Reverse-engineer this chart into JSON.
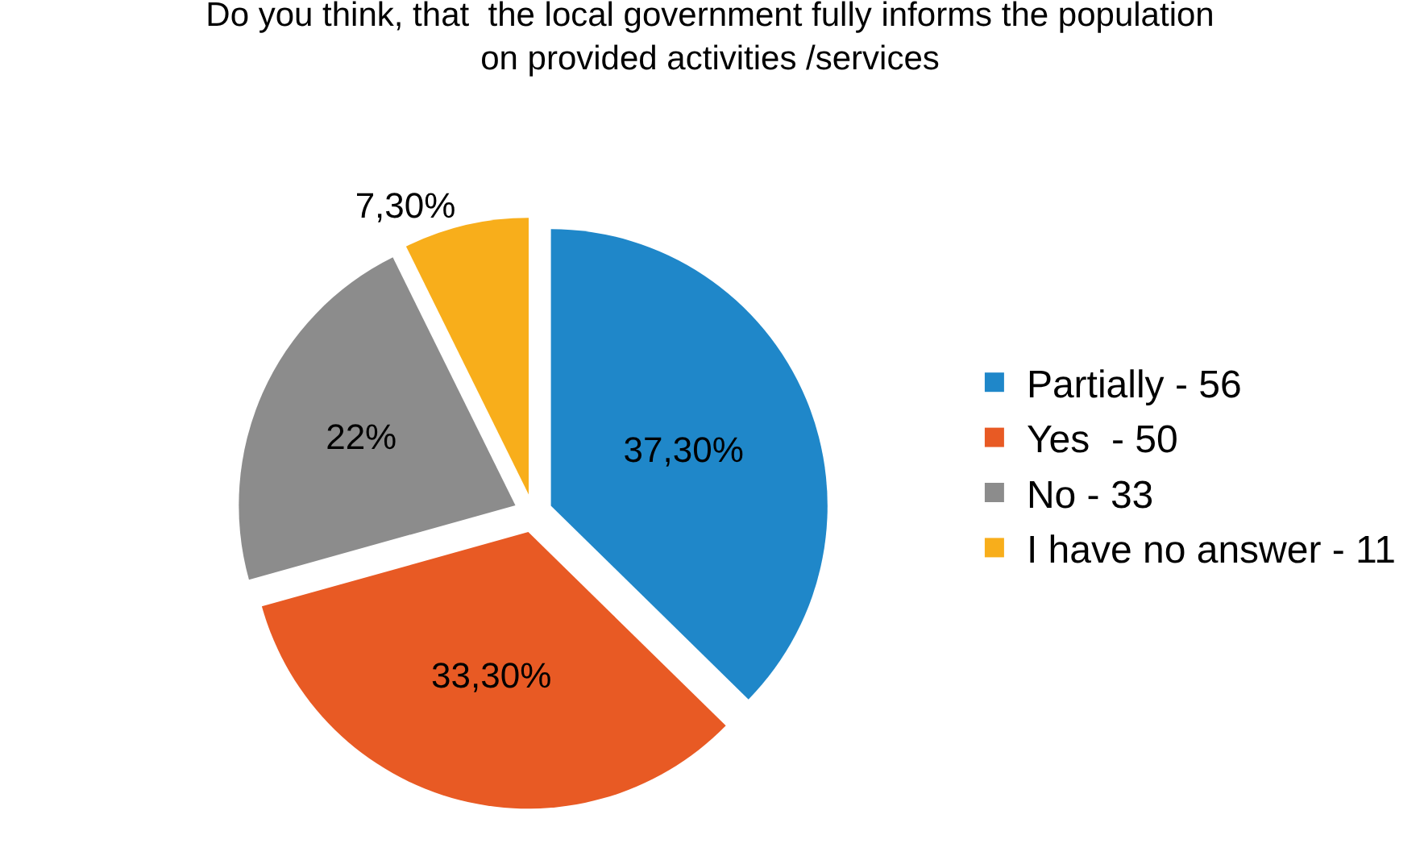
{
  "chart_data": {
    "type": "pie",
    "title": "Do you think, that  the local government fully informs the population\non provided activities /services",
    "categories": [
      "Partially - 56",
      "Yes  - 50",
      "No - 33",
      "I have no answer - 11"
    ],
    "values": [
      37.3,
      33.3,
      22,
      7.3
    ],
    "value_labels": [
      "37,30%",
      "33,30%",
      "22%",
      "7,30%"
    ],
    "colors": [
      "#1f87c9",
      "#e85a24",
      "#8c8c8c",
      "#f8ae1b"
    ],
    "legend": "right"
  }
}
